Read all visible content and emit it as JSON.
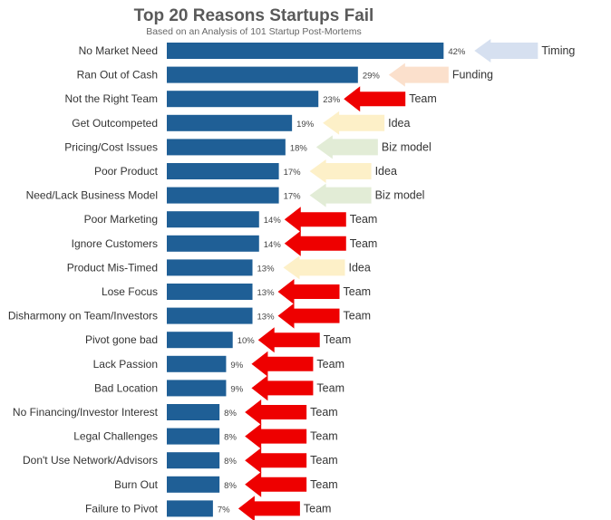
{
  "chart_data": {
    "type": "bar",
    "orientation": "horizontal",
    "title": "Top 20 Reasons Startups Fail",
    "subtitle": "Based on an Analysis of 101 Startup Post-Mortems",
    "xlabel": "",
    "ylabel": "",
    "xlim": [
      0,
      45
    ],
    "grid": false,
    "value_suffix": "%",
    "categories": [
      "No Market Need",
      "Ran Out of Cash",
      "Not the Right Team",
      "Get Outcompeted",
      "Pricing/Cost Issues",
      "Poor Product",
      "Need/Lack Business Model",
      "Poor Marketing",
      "Ignore Customers",
      "Product Mis-Timed",
      "Lose Focus",
      "Disharmony on Team/Investors",
      "Pivot gone bad",
      "Lack Passion",
      "Bad Location",
      "No Financing/Investor Interest",
      "Legal Challenges",
      "Don't Use Network/Advisors",
      "Burn Out",
      "Failure to Pivot"
    ],
    "values": [
      42,
      29,
      23,
      19,
      18,
      17,
      17,
      14,
      14,
      13,
      13,
      13,
      10,
      9,
      9,
      8,
      8,
      8,
      8,
      7
    ],
    "annotations": [
      "Timing",
      "Funding",
      "Team",
      "Idea",
      "Biz model",
      "Idea",
      "Biz model",
      "Team",
      "Team",
      "Idea",
      "Team",
      "Team",
      "Team",
      "Team",
      "Team",
      "Team",
      "Team",
      "Team",
      "Team",
      "Team"
    ],
    "colors": {
      "bar": "#1f5f96",
      "Timing": "#d6e0f0",
      "Funding": "#fbe0cc",
      "Team": "#ee0000",
      "Idea": "#fdf0c8",
      "Biz model": "#e2ecd6"
    }
  }
}
